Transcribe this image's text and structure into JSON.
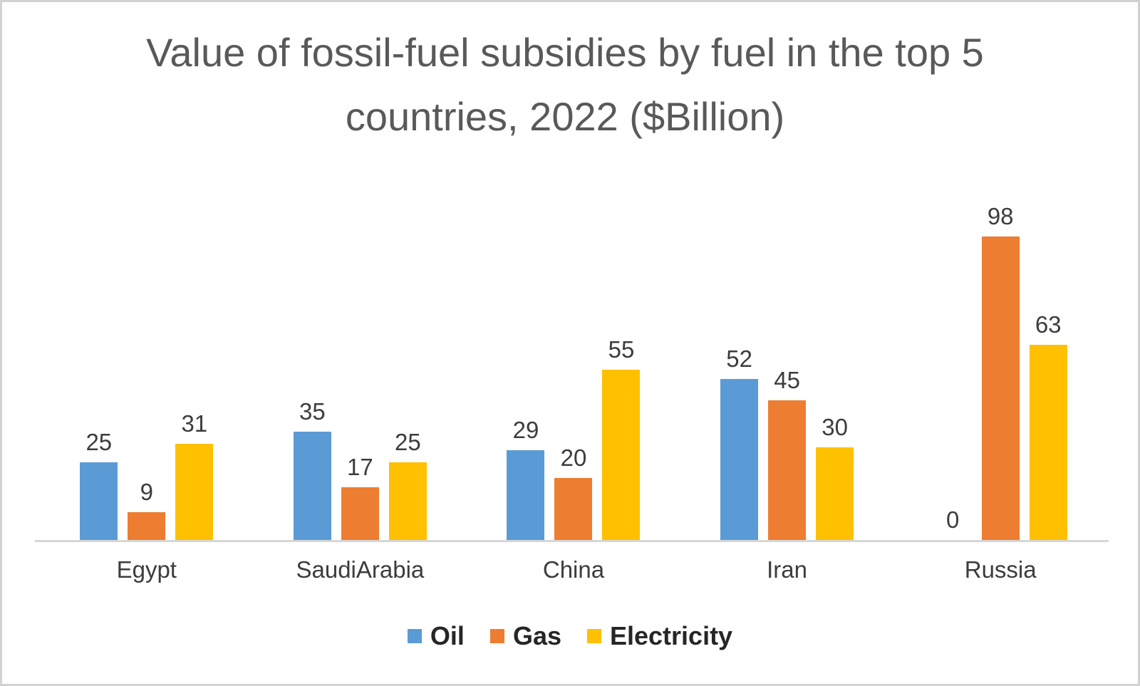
{
  "title": {
    "line1": "Value of fossil-fuel subsidies by fuel in the top 5",
    "line2": "countries, 2022 ($Billion)",
    "color": "#595959"
  },
  "chart_data": {
    "type": "bar",
    "title": "Value of fossil-fuel subsidies by fuel in the top 5 countries, 2022 ($Billion)",
    "categories": [
      "Egypt",
      "SaudiArabia",
      "China",
      "Iran",
      "Russia"
    ],
    "series": [
      {
        "name": "Oil",
        "color": "#5B9BD5",
        "values": [
          25,
          35,
          29,
          52,
          0
        ]
      },
      {
        "name": "Gas",
        "color": "#ED7D31",
        "values": [
          9,
          17,
          20,
          45,
          98
        ]
      },
      {
        "name": "Electricity",
        "color": "#FFC000",
        "values": [
          31,
          25,
          55,
          30,
          63
        ]
      }
    ],
    "xlabel": "",
    "ylabel": "",
    "ylim": [
      0,
      100
    ],
    "grid": false,
    "y_axis_visible": false,
    "data_labels": true,
    "legend_position": "bottom"
  },
  "style": {
    "axis_line_color": "#d6d6d6",
    "label_color": "#3c3c3c",
    "legend_text_color": "#262626",
    "frame_border_color": "#d2d2d2",
    "background": "#ffffff"
  }
}
